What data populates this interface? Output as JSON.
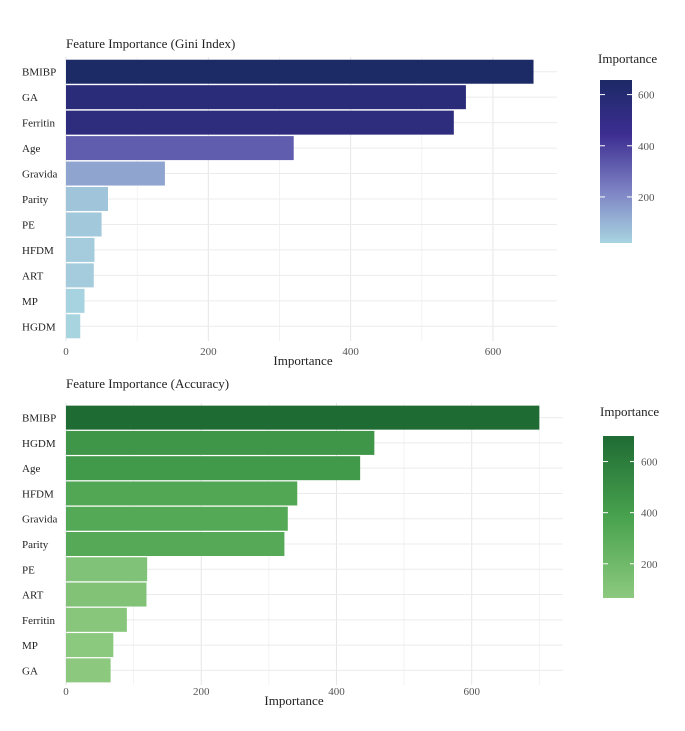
{
  "chart_data": [
    {
      "type": "bar",
      "orientation": "horizontal",
      "title": "Feature Importance (Gini Index)",
      "xlabel": "Importance",
      "ylabel": "",
      "categories": [
        "BMIBP",
        "GA",
        "Ferritin",
        "Age",
        "Gravida",
        "Parity",
        "PE",
        "HFDM",
        "ART",
        "MP",
        "HGDM"
      ],
      "values": [
        657,
        562,
        545,
        320,
        139,
        59,
        50,
        40,
        39,
        26,
        20
      ],
      "xlim": [
        0,
        690
      ],
      "xticks": [
        0,
        200,
        400,
        600
      ],
      "grid": true,
      "legend": {
        "title": "Importance",
        "placement": "right",
        "ticks": [
          200,
          400,
          600
        ],
        "range": [
          20,
          657
        ],
        "colors": [
          "#a8d4e0",
          "#7b7fc2",
          "#3c2d91",
          "#1c2a66"
        ]
      }
    },
    {
      "type": "bar",
      "orientation": "horizontal",
      "title": "Feature Importance (Accuracy)",
      "xlabel": "Importance",
      "ylabel": "",
      "categories": [
        "BMIBP",
        "HGDM",
        "Age",
        "HFDM",
        "Gravida",
        "Parity",
        "PE",
        "ART",
        "Ferritin",
        "MP",
        "GA"
      ],
      "values": [
        700,
        456,
        435,
        342,
        328,
        323,
        120,
        119,
        90,
        70,
        66
      ],
      "xlim": [
        0,
        735
      ],
      "xticks": [
        0,
        200,
        400,
        600
      ],
      "grid": true,
      "legend": {
        "title": "Importance",
        "placement": "right",
        "ticks": [
          200,
          400,
          600
        ],
        "range": [
          66,
          700
        ],
        "colors": [
          "#8cc97f",
          "#48a24e",
          "#1f6b34"
        ]
      }
    }
  ]
}
